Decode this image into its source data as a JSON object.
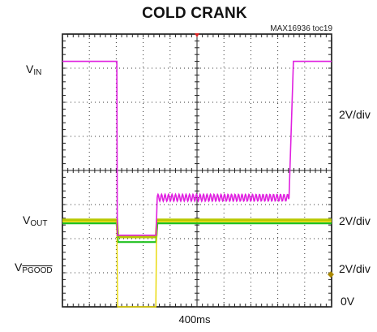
{
  "chart_data": {
    "type": "line",
    "title": "COLD CRANK",
    "subtitle": "MAX16936 toc19",
    "xlabel": "400ms",
    "x_divisions": 10,
    "y_divisions": 8,
    "grid": true,
    "channel_labels": {
      "vin_main": "V",
      "vin_sub": "IN",
      "vout_main": "V",
      "vout_sub": "OUT",
      "vpgood_main": "V",
      "vpgood_sub": "PGOOD",
      "zero_label": "0V"
    },
    "scale_labels": [
      "2V/div",
      "2V/div",
      "2V/div"
    ],
    "series": [
      {
        "name": "VIN",
        "color": "#e020e0",
        "x_div": [
          0.0,
          2.02,
          2.04,
          2.52,
          3.48,
          3.52,
          8.42,
          8.58,
          10.0
        ],
        "y_div": [
          7.2,
          7.2,
          2.1,
          2.1,
          2.1,
          3.2,
          3.2,
          7.2,
          7.2
        ],
        "ripple": {
          "from_div": 3.52,
          "to_div": 8.42,
          "amplitude_div": 0.1,
          "period_div": 0.13
        }
      },
      {
        "name": "VOUT",
        "color": "#b8c800",
        "x_div": [
          0.0,
          2.02,
          2.06,
          3.48,
          3.52,
          10.0
        ],
        "y_div": [
          2.55,
          2.55,
          2.05,
          2.05,
          2.55,
          2.55
        ]
      },
      {
        "name": "VOUT_lower",
        "color": "#20c020",
        "x_div": [
          0.0,
          2.02,
          2.06,
          3.48,
          3.52,
          10.0
        ],
        "y_div": [
          2.45,
          2.45,
          1.9,
          1.9,
          2.45,
          2.45
        ]
      },
      {
        "name": "VPGOOD",
        "color": "#e8d800",
        "x_div": [
          0.0,
          2.02,
          2.05,
          3.47,
          3.5,
          10.0
        ],
        "y_div": [
          2.5,
          2.5,
          0.0,
          0.0,
          2.5,
          2.5
        ]
      }
    ],
    "trigger_marker": {
      "x_div": 5.0,
      "color": "#dd2222"
    },
    "level_marker": {
      "y_div": 0.95,
      "color": "#aa8800"
    }
  }
}
